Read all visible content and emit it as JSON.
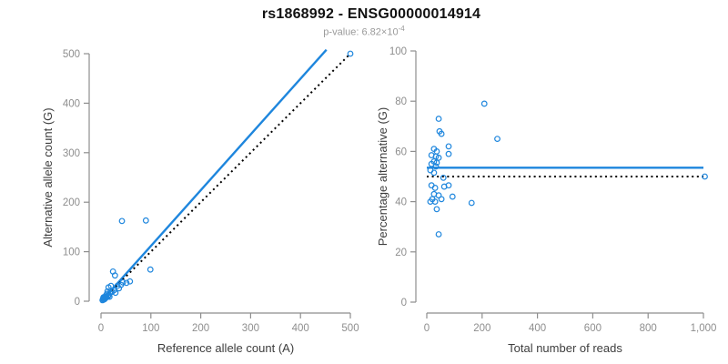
{
  "header": {
    "title": "rs1868992 - ENSG00000014914",
    "subtitle_base": "p-value: 6.82×10",
    "subtitle_exponent": "-4"
  },
  "colors": {
    "accent_blue": "#1E86DD",
    "identity_black": "#000000",
    "axis_gray": "#8E8E8E",
    "tick_label_gray": "#8E8E8E",
    "axis_title_gray": "#3D3D3D",
    "title_color": "#111111",
    "subtitle_gray": "#9A9A9A"
  },
  "chart_data": [
    {
      "type": "scatter",
      "name": "allele-counts",
      "xlabel": "Reference allele count (A)",
      "ylabel": "Alternative allele count (G)",
      "xlim": [
        0,
        500
      ],
      "ylim": [
        0,
        500
      ],
      "xticks": [
        0,
        100,
        200,
        300,
        400,
        500
      ],
      "yticks": [
        0,
        100,
        200,
        300,
        400,
        500
      ],
      "xtick_labels": [
        "0",
        "100",
        "200",
        "300",
        "400",
        "500"
      ],
      "ytick_labels": [
        "0",
        "100",
        "200",
        "300",
        "400",
        "500"
      ],
      "grid": false,
      "legend": "none",
      "points": [
        [
          3,
          2
        ],
        [
          4,
          5
        ],
        [
          5,
          3
        ],
        [
          5,
          8
        ],
        [
          6,
          6
        ],
        [
          7,
          4
        ],
        [
          8,
          9
        ],
        [
          9,
          6
        ],
        [
          10,
          12
        ],
        [
          11,
          8
        ],
        [
          12,
          15
        ],
        [
          13,
          20
        ],
        [
          14,
          10
        ],
        [
          15,
          28
        ],
        [
          16,
          13
        ],
        [
          17,
          9
        ],
        [
          18,
          17
        ],
        [
          20,
          31
        ],
        [
          22,
          19
        ],
        [
          24,
          60
        ],
        [
          26,
          22
        ],
        [
          28,
          52
        ],
        [
          29,
          17
        ],
        [
          33,
          31
        ],
        [
          36,
          26
        ],
        [
          40,
          33
        ],
        [
          44,
          38
        ],
        [
          51,
          37
        ],
        [
          58,
          40
        ],
        [
          42,
          162
        ],
        [
          90,
          163
        ],
        [
          99,
          64
        ],
        [
          500,
          500
        ]
      ],
      "lines": [
        {
          "name": "regression-line",
          "style": "solid",
          "color_key": "accent_blue",
          "segment": [
            [
              1,
              0
            ],
            [
              452,
              508
            ]
          ]
        },
        {
          "name": "identity-line",
          "style": "dotted",
          "color_key": "identity_black",
          "segment": [
            [
              0,
              0
            ],
            [
              500,
              500
            ]
          ]
        }
      ]
    },
    {
      "type": "scatter",
      "name": "percentage-vs-coverage",
      "xlabel": "Total number of reads",
      "ylabel": "Percentage alternative (G)",
      "xlim": [
        0,
        1000
      ],
      "ylim": [
        0,
        100
      ],
      "xticks": [
        0,
        200,
        400,
        600,
        800,
        1000
      ],
      "yticks": [
        0,
        20,
        40,
        60,
        80,
        100
      ],
      "xtick_labels": [
        "0",
        "200",
        "400",
        "600",
        "800",
        "1,000"
      ],
      "ytick_labels": [
        "0",
        "20",
        "40",
        "60",
        "80",
        "100"
      ],
      "grid": false,
      "legend": "none",
      "points": [
        [
          17,
          46.5
        ],
        [
          30,
          45.5
        ],
        [
          63,
          46
        ],
        [
          79,
          46.5
        ],
        [
          26,
          43
        ],
        [
          43,
          42.5
        ],
        [
          20,
          41
        ],
        [
          53,
          41
        ],
        [
          13,
          40
        ],
        [
          30,
          40
        ],
        [
          93,
          42
        ],
        [
          162,
          39.5
        ],
        [
          36,
          37
        ],
        [
          43,
          27
        ],
        [
          208,
          79
        ],
        [
          255,
          65
        ],
        [
          43,
          73
        ],
        [
          46,
          68
        ],
        [
          53,
          67
        ],
        [
          79,
          62
        ],
        [
          26,
          61
        ],
        [
          36,
          60
        ],
        [
          79,
          59
        ],
        [
          17,
          58.5
        ],
        [
          33,
          58
        ],
        [
          43,
          57.5
        ],
        [
          26,
          56
        ],
        [
          36,
          55.5
        ],
        [
          17,
          55
        ],
        [
          33,
          54
        ],
        [
          13,
          52.5
        ],
        [
          26,
          51.5
        ],
        [
          60,
          49.5
        ],
        [
          1005,
          50
        ]
      ],
      "lines": [
        {
          "name": "mean-line",
          "style": "solid",
          "color_key": "accent_blue",
          "segment": [
            [
              0,
              53.5
            ],
            [
              1000,
              53.5
            ]
          ]
        },
        {
          "name": "expected-line",
          "style": "dotted",
          "color_key": "identity_black",
          "segment": [
            [
              0,
              50
            ],
            [
              1000,
              50
            ]
          ]
        }
      ]
    }
  ]
}
